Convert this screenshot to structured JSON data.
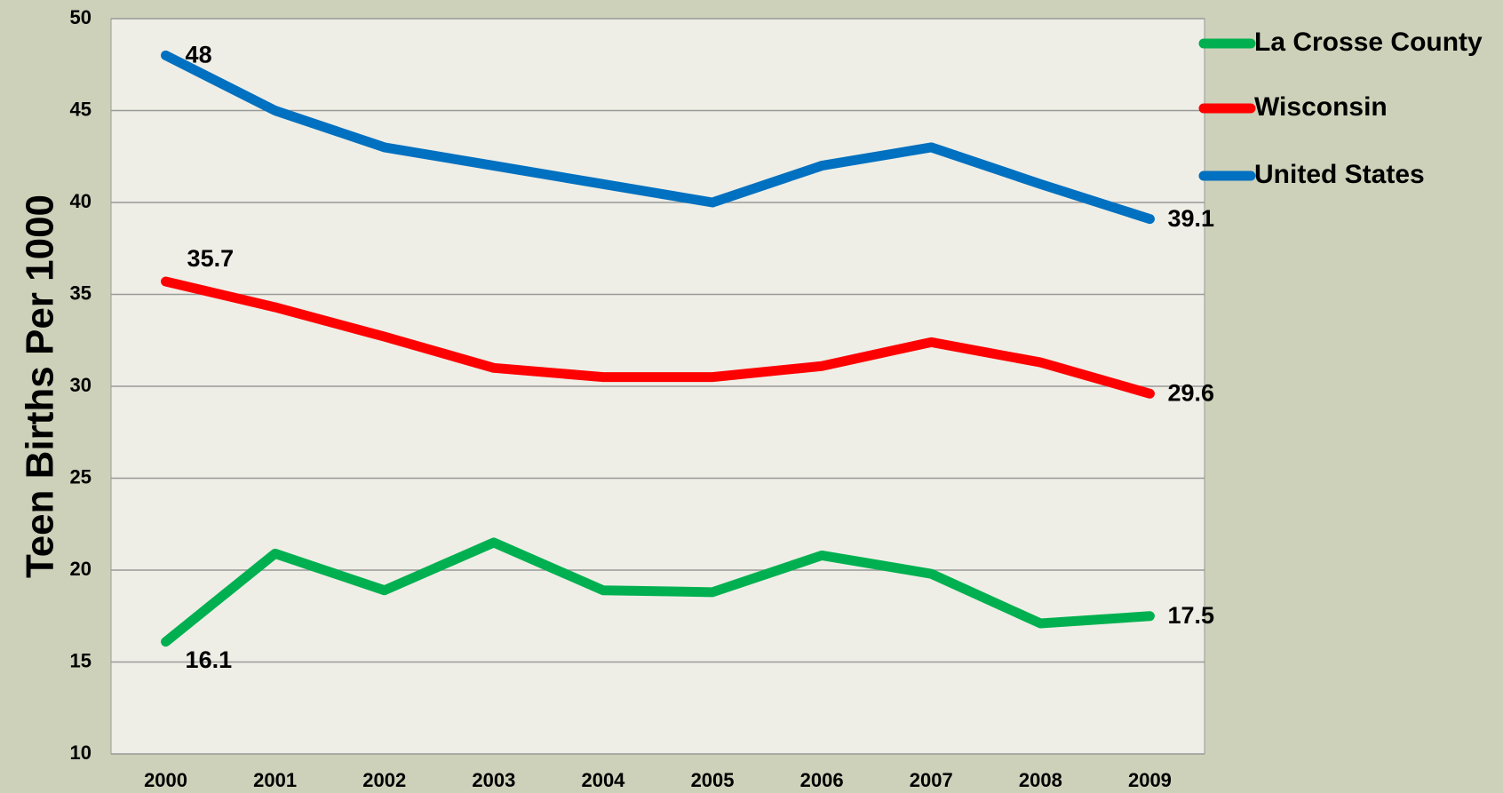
{
  "chart_data": {
    "type": "line",
    "y_label": "Teen Births Per 1000",
    "categories": [
      "2000",
      "2001",
      "2002",
      "2003",
      "2004",
      "2005",
      "2006",
      "2007",
      "2008",
      "2009"
    ],
    "series": [
      {
        "name": "La Crosse County",
        "color": "#00b050",
        "values": [
          16.1,
          20.9,
          18.9,
          21.5,
          18.9,
          18.8,
          20.8,
          19.8,
          17.1,
          17.5
        ],
        "value_labels": [
          "16.1",
          null,
          null,
          null,
          null,
          null,
          null,
          null,
          null,
          "17.5"
        ]
      },
      {
        "name": "Wisconsin",
        "color": "#ff0000",
        "values": [
          35.7,
          34.3,
          32.7,
          31.0,
          30.5,
          30.5,
          31.1,
          32.4,
          31.3,
          29.6
        ],
        "value_labels": [
          "35.7",
          null,
          null,
          null,
          null,
          null,
          null,
          null,
          null,
          "29.6"
        ]
      },
      {
        "name": "United States",
        "color": "#0070c0",
        "values": [
          48,
          45,
          43,
          42,
          41,
          40,
          42,
          43,
          41,
          39.1
        ],
        "value_labels": [
          "48",
          null,
          null,
          null,
          null,
          null,
          null,
          null,
          null,
          "39.1"
        ]
      }
    ],
    "ylim": [
      10,
      50
    ],
    "yticks": [
      10,
      15,
      20,
      25,
      30,
      35,
      40,
      45,
      50
    ],
    "grid": true,
    "legend": "right"
  }
}
